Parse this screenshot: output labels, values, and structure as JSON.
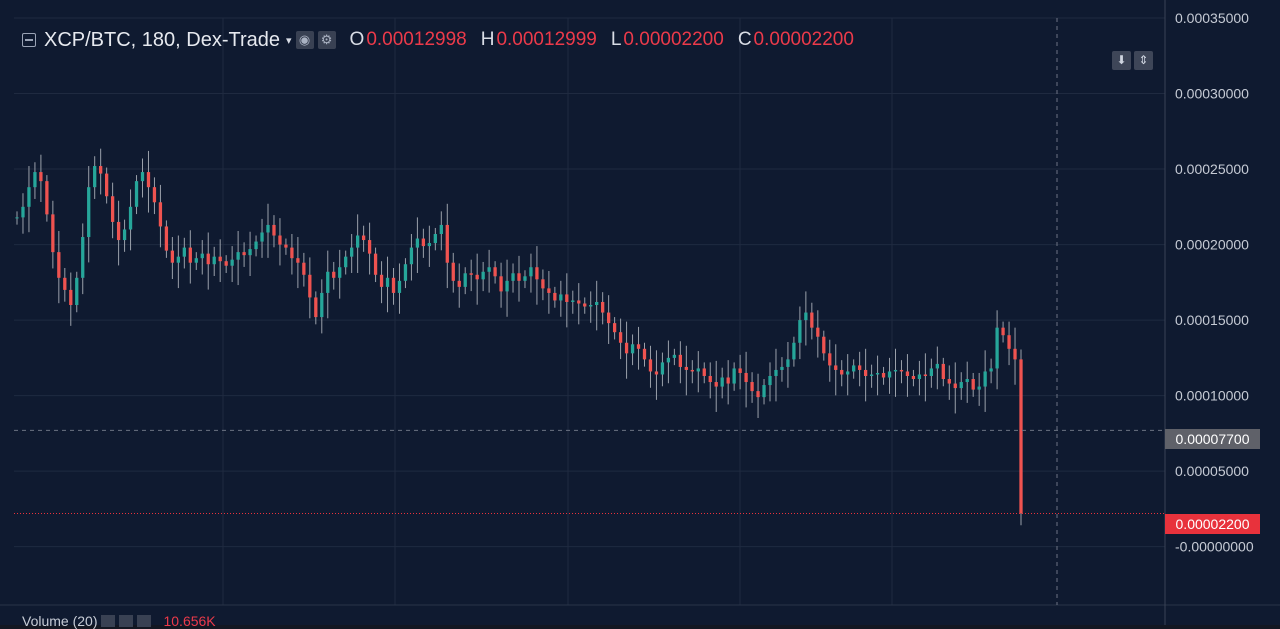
{
  "legend": {
    "symbol": "XCP/BTC, 180, Dex-Trade",
    "caret": "▾",
    "eye_icon_glyph": "◉",
    "gear_icon_glyph": "⚙",
    "open_label": "O",
    "open_value": "0.00012998",
    "high_label": "H",
    "high_value": "0.00012999",
    "low_label": "L",
    "low_value": "0.00002200",
    "close_label": "C",
    "close_value": "0.00002200"
  },
  "scroll_buttons": {
    "down_glyph": "⬇",
    "up_down_glyph": "⇕"
  },
  "price_tags": {
    "crosshair": "0.00007700",
    "last_price": "0.00002200"
  },
  "volume": {
    "label": "Volume (20)",
    "value": "10.656K"
  },
  "colors": {
    "background": "#0f1a30",
    "grid": "#1f2a40",
    "up": "#26a69a",
    "down": "#ef5350",
    "wick": "#9aa0aa",
    "axis_text": "#c6cbd5",
    "last_price_line": "#e8323c"
  },
  "chart_data": {
    "type": "candlestick",
    "title": "XCP/BTC, 180, Dex-Trade",
    "ylim": [
      -3e-05,
      0.00035
    ],
    "y_ticks": [
      "0.00035000",
      "0.00030000",
      "0.00025000",
      "0.00020000",
      "0.00015000",
      "0.00010000",
      "0.00005000",
      "-0.00000000"
    ],
    "y_tick_values": [
      0.00035,
      0.0003,
      0.00025,
      0.0002,
      0.00015,
      0.0001,
      5e-05,
      0
    ],
    "crosshair_price": 7.7e-05,
    "last_price": 2.2e-05,
    "grid": true,
    "series": [
      {
        "name": "XCP/BTC",
        "close": [
          0.000218,
          0.000225,
          0.000238,
          0.000248,
          0.000242,
          0.00022,
          0.000195,
          0.000178,
          0.00017,
          0.00016,
          0.000178,
          0.000205,
          0.000238,
          0.000252,
          0.000247,
          0.000232,
          0.000215,
          0.000203,
          0.00021,
          0.000225,
          0.000242,
          0.000248,
          0.000238,
          0.000228,
          0.000212,
          0.000196,
          0.000188,
          0.000192,
          0.000198,
          0.000188,
          0.000191,
          0.000194,
          0.000187,
          0.000192,
          0.000189,
          0.000186,
          0.00019,
          0.000195,
          0.000193,
          0.000197,
          0.000202,
          0.000208,
          0.000213,
          0.000206,
          0.0002,
          0.000198,
          0.000191,
          0.000188,
          0.00018,
          0.000165,
          0.000152,
          0.000168,
          0.000182,
          0.000178,
          0.000185,
          0.000192,
          0.000198,
          0.000206,
          0.000203,
          0.000194,
          0.00018,
          0.000172,
          0.000178,
          0.000168,
          0.000176,
          0.000187,
          0.000198,
          0.000204,
          0.000199,
          0.000201,
          0.000207,
          0.000213,
          0.000188,
          0.000176,
          0.000172,
          0.000181,
          0.00018,
          0.000177,
          0.000182,
          0.000185,
          0.000179,
          0.000169,
          0.000176,
          0.000181,
          0.000176,
          0.000179,
          0.000185,
          0.000177,
          0.000171,
          0.000168,
          0.000163,
          0.000167,
          0.000162,
          0.000163,
          0.000161,
          0.000159,
          0.00016,
          0.000162,
          0.000155,
          0.000148,
          0.000142,
          0.000135,
          0.000128,
          0.000134,
          0.000131,
          0.000124,
          0.000116,
          0.000114,
          0.000122,
          0.000125,
          0.000127,
          0.000119,
          0.000117,
          0.000116,
          0.000118,
          0.000113,
          0.000109,
          0.000106,
          0.000112,
          0.000108,
          0.000118,
          0.000115,
          0.000109,
          0.000103,
          9.9e-05,
          0.000107,
          0.000113,
          0.000117,
          0.000119,
          0.000124,
          0.000135,
          0.00015,
          0.000155,
          0.000145,
          0.000139,
          0.000128,
          0.00012,
          0.000117,
          0.000114,
          0.000116,
          0.00012,
          0.000117,
          0.000113,
          0.000114,
          0.000115,
          0.000112,
          0.000116,
          0.000117,
          0.000116,
          0.000113,
          0.000111,
          0.000114,
          0.000113,
          0.000118,
          0.000121,
          0.000111,
          0.000108,
          0.000105,
          0.000109,
          0.000111,
          0.000104,
          0.000106,
          0.000116,
          0.000118,
          0.000145,
          0.00014,
          0.000131,
          0.000124,
          2.2e-05
        ]
      }
    ]
  }
}
